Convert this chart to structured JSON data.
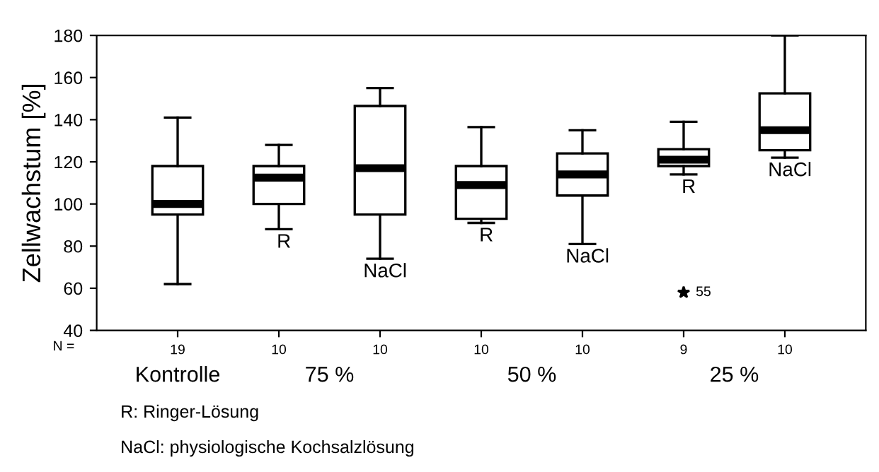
{
  "chart_data": {
    "type": "box",
    "ylabel": "Zellwachstum [%]",
    "categories": [
      "19",
      "10",
      "10",
      "10",
      "10",
      "9",
      "10"
    ],
    "boxes": [
      {
        "low": 62,
        "q1": 95,
        "median": 100,
        "q3": 118,
        "high": 141
      },
      {
        "low": 88,
        "q1": 100,
        "median": 112.5,
        "q3": 118,
        "high": 128
      },
      {
        "low": 74,
        "q1": 95,
        "median": 117,
        "q3": 146.5,
        "high": 155
      },
      {
        "low": 91,
        "q1": 93,
        "median": 109,
        "q3": 118,
        "high": 136.5
      },
      {
        "low": 81,
        "q1": 104,
        "median": 114,
        "q3": 124,
        "high": 135
      },
      {
        "low": 114,
        "q1": 118,
        "median": 121,
        "q3": 126,
        "high": 139,
        "outliers": [
          58
        ]
      },
      {
        "low": 122,
        "q1": 125.5,
        "median": 135,
        "q3": 152.5,
        "high": 180
      }
    ],
    "color": "#000000",
    "marker": "star",
    "ylim": [
      40,
      180
    ],
    "yticks": [
      40,
      60,
      80,
      100,
      120,
      140,
      160,
      180
    ],
    "grid": false,
    "annotations": [
      "N =",
      "Kontrolle",
      "75 %",
      "50 %",
      "25 %",
      "R",
      "NaCl",
      "R",
      "NaCl",
      "R",
      "NaCl",
      "55",
      "R: Ringer-Lösung",
      "NaCl: physiologische Kochsalzlösung"
    ]
  }
}
